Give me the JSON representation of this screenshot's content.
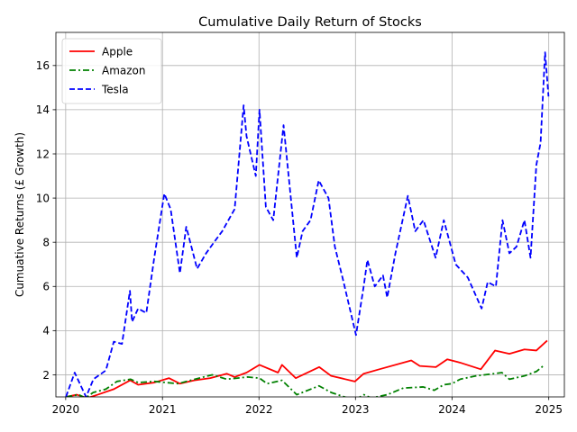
{
  "chart_data": {
    "type": "line",
    "title": "Cumulative Daily Return of Stocks",
    "xlabel": "",
    "ylabel": "Cumuative  Returns (£ Growth)",
    "xlim": [
      "2019-11-25",
      "2025-03-01"
    ],
    "ylim": [
      1.0,
      17.5
    ],
    "x_ticks": [
      "2020",
      "2021",
      "2022",
      "2023",
      "2024",
      "2025"
    ],
    "y_ticks": [
      2,
      4,
      6,
      8,
      10,
      12,
      14,
      16
    ],
    "grid": true,
    "legend_position": "upper-left",
    "series": [
      {
        "name": "Apple",
        "color": "#ff0000",
        "line_style": "solid",
        "points": [
          [
            "2020-01-02",
            1.0
          ],
          [
            "2020-02-12",
            1.1
          ],
          [
            "2020-03-23",
            0.95
          ],
          [
            "2020-05-01",
            1.1
          ],
          [
            "2020-07-01",
            1.35
          ],
          [
            "2020-09-01",
            1.75
          ],
          [
            "2020-10-01",
            1.55
          ],
          [
            "2020-12-01",
            1.65
          ],
          [
            "2021-01-26",
            1.85
          ],
          [
            "2021-03-08",
            1.6
          ],
          [
            "2021-05-01",
            1.75
          ],
          [
            "2021-07-01",
            1.85
          ],
          [
            "2021-09-01",
            2.05
          ],
          [
            "2021-10-01",
            1.9
          ],
          [
            "2021-11-15",
            2.1
          ],
          [
            "2022-01-03",
            2.45
          ],
          [
            "2022-03-14",
            2.1
          ],
          [
            "2022-03-29",
            2.45
          ],
          [
            "2022-05-20",
            1.85
          ],
          [
            "2022-08-17",
            2.35
          ],
          [
            "2022-10-01",
            1.95
          ],
          [
            "2022-12-30",
            1.7
          ],
          [
            "2023-02-01",
            2.05
          ],
          [
            "2023-04-01",
            2.25
          ],
          [
            "2023-07-31",
            2.65
          ],
          [
            "2023-09-01",
            2.4
          ],
          [
            "2023-11-01",
            2.35
          ],
          [
            "2023-12-14",
            2.7
          ],
          [
            "2024-02-01",
            2.55
          ],
          [
            "2024-04-19",
            2.25
          ],
          [
            "2024-06-12",
            3.1
          ],
          [
            "2024-08-05",
            2.95
          ],
          [
            "2024-10-01",
            3.15
          ],
          [
            "2024-11-15",
            3.1
          ],
          [
            "2024-12-26",
            3.55
          ]
        ]
      },
      {
        "name": "Amazon",
        "color": "#008000",
        "line_style": "dashdot",
        "points": [
          [
            "2020-01-02",
            1.0
          ],
          [
            "2020-02-19",
            1.1
          ],
          [
            "2020-03-16",
            0.95
          ],
          [
            "2020-04-14",
            1.2
          ],
          [
            "2020-06-01",
            1.35
          ],
          [
            "2020-07-13",
            1.7
          ],
          [
            "2020-09-02",
            1.8
          ],
          [
            "2020-10-01",
            1.65
          ],
          [
            "2020-12-01",
            1.7
          ],
          [
            "2021-03-01",
            1.6
          ],
          [
            "2021-07-08",
            2.0
          ],
          [
            "2021-09-01",
            1.8
          ],
          [
            "2021-11-19",
            1.9
          ],
          [
            "2022-01-03",
            1.85
          ],
          [
            "2022-02-01",
            1.6
          ],
          [
            "2022-03-29",
            1.75
          ],
          [
            "2022-05-24",
            1.1
          ],
          [
            "2022-08-16",
            1.5
          ],
          [
            "2022-10-01",
            1.2
          ],
          [
            "2022-12-28",
            0.85
          ],
          [
            "2023-02-02",
            1.1
          ],
          [
            "2023-03-01",
            0.95
          ],
          [
            "2023-05-01",
            1.1
          ],
          [
            "2023-07-01",
            1.4
          ],
          [
            "2023-09-14",
            1.45
          ],
          [
            "2023-10-26",
            1.3
          ],
          [
            "2023-12-01",
            1.55
          ],
          [
            "2024-01-01",
            1.6
          ],
          [
            "2024-02-01",
            1.8
          ],
          [
            "2024-04-01",
            1.95
          ],
          [
            "2024-07-08",
            2.1
          ],
          [
            "2024-08-05",
            1.8
          ],
          [
            "2024-10-01",
            1.95
          ],
          [
            "2024-11-15",
            2.15
          ],
          [
            "2024-12-16",
            2.45
          ]
        ]
      },
      {
        "name": "Tesla",
        "color": "#0000ff",
        "line_style": "dashed",
        "points": [
          [
            "2020-01-02",
            1.0
          ],
          [
            "2020-02-04",
            2.1
          ],
          [
            "2020-03-18",
            1.0
          ],
          [
            "2020-04-15",
            1.8
          ],
          [
            "2020-06-01",
            2.2
          ],
          [
            "2020-07-01",
            3.5
          ],
          [
            "2020-08-01",
            3.4
          ],
          [
            "2020-08-31",
            5.8
          ],
          [
            "2020-09-08",
            4.4
          ],
          [
            "2020-10-01",
            5.0
          ],
          [
            "2020-11-01",
            4.8
          ],
          [
            "2020-12-01",
            7.3
          ],
          [
            "2021-01-08",
            10.2
          ],
          [
            "2021-02-01",
            9.5
          ],
          [
            "2021-03-08",
            6.6
          ],
          [
            "2021-04-01",
            8.7
          ],
          [
            "2021-05-12",
            6.8
          ],
          [
            "2021-06-15",
            7.5
          ],
          [
            "2021-07-15",
            8.0
          ],
          [
            "2021-08-15",
            8.5
          ],
          [
            "2021-10-01",
            9.5
          ],
          [
            "2021-11-04",
            14.2
          ],
          [
            "2021-11-15",
            12.8
          ],
          [
            "2021-12-20",
            11.0
          ],
          [
            "2022-01-03",
            14.0
          ],
          [
            "2022-01-27",
            9.6
          ],
          [
            "2022-02-24",
            9.0
          ],
          [
            "2022-04-04",
            13.3
          ],
          [
            "2022-05-24",
            7.3
          ],
          [
            "2022-06-15",
            8.5
          ],
          [
            "2022-07-15",
            9.0
          ],
          [
            "2022-08-15",
            10.8
          ],
          [
            "2022-09-21",
            10.0
          ],
          [
            "2022-10-15",
            7.8
          ],
          [
            "2022-11-15",
            6.3
          ],
          [
            "2023-01-03",
            3.8
          ],
          [
            "2023-02-01",
            6.0
          ],
          [
            "2023-02-15",
            7.2
          ],
          [
            "2023-03-15",
            6.0
          ],
          [
            "2023-04-15",
            6.5
          ],
          [
            "2023-05-01",
            5.5
          ],
          [
            "2023-06-01",
            7.5
          ],
          [
            "2023-07-18",
            10.1
          ],
          [
            "2023-08-15",
            8.5
          ],
          [
            "2023-09-15",
            9.0
          ],
          [
            "2023-10-31",
            7.3
          ],
          [
            "2023-12-01",
            9.0
          ],
          [
            "2024-01-15",
            7.0
          ],
          [
            "2024-03-01",
            6.4
          ],
          [
            "2024-04-22",
            5.0
          ],
          [
            "2024-05-15",
            6.2
          ],
          [
            "2024-06-15",
            6.0
          ],
          [
            "2024-07-10",
            9.0
          ],
          [
            "2024-08-05",
            7.5
          ],
          [
            "2024-09-01",
            7.8
          ],
          [
            "2024-10-01",
            9.0
          ],
          [
            "2024-10-24",
            7.3
          ],
          [
            "2024-11-15",
            11.5
          ],
          [
            "2024-12-01",
            12.5
          ],
          [
            "2024-12-18",
            16.6
          ],
          [
            "2024-12-31",
            14.6
          ]
        ]
      }
    ]
  }
}
